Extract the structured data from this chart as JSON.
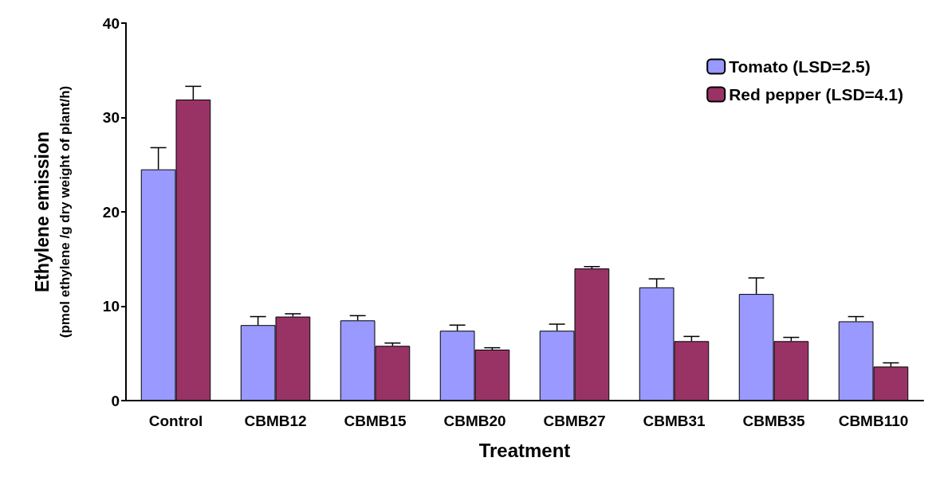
{
  "chart_data": {
    "type": "bar",
    "xlabel": "Treatment",
    "ylabel": "Ethylene emission\n(pmol ethylene /g dry weight of plant/h)",
    "categories": [
      "Control",
      "CBMB12",
      "CBMB15",
      "CBMB20",
      "CBMB27",
      "CBMB31",
      "CBMB35",
      "CBMB110"
    ],
    "series": [
      {
        "name": "Tomato (LSD=2.5)",
        "color": "#9999ff",
        "values": [
          24.5,
          8.0,
          8.5,
          7.4,
          7.4,
          12.0,
          11.3,
          8.4
        ],
        "errors": [
          [
            24.5,
            26.8
          ],
          [
            8.0,
            8.9
          ],
          [
            8.5,
            9.0
          ],
          [
            7.4,
            8.0
          ],
          [
            7.4,
            8.1
          ],
          [
            12.0,
            12.9
          ],
          [
            11.3,
            13.0
          ],
          [
            8.4,
            8.9
          ]
        ]
      },
      {
        "name": "Red pepper (LSD=4.1)",
        "color": "#993366",
        "values": [
          31.9,
          8.9,
          5.8,
          5.4,
          14.0,
          6.3,
          6.3,
          3.6
        ],
        "errors": [
          [
            31.9,
            33.3
          ],
          [
            8.9,
            9.2
          ],
          [
            5.8,
            6.1
          ],
          [
            5.4,
            5.6
          ],
          [
            14.0,
            14.2
          ],
          [
            6.3,
            6.8
          ],
          [
            6.3,
            6.7
          ],
          [
            3.6,
            4.0
          ]
        ]
      }
    ],
    "ylim": [
      0,
      40
    ],
    "yticks": [
      0,
      10,
      20,
      30,
      40
    ],
    "grid": false,
    "legend": "top right"
  }
}
